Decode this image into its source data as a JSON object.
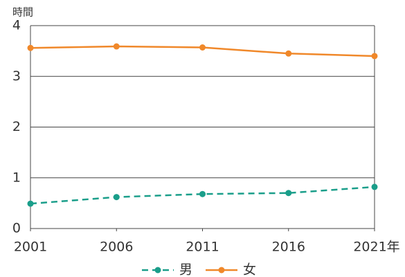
{
  "chart_data": {
    "type": "line",
    "y_unit_label": "時間",
    "x": [
      2001,
      2006,
      2011,
      2016,
      2021
    ],
    "xlim": [
      2001,
      2021
    ],
    "xticks": [
      2001,
      2006,
      2011,
      2016,
      {
        "value": 2021,
        "label": "2021年"
      }
    ],
    "ylim": [
      0,
      4
    ],
    "yticks": [
      0,
      1,
      2,
      3,
      4
    ],
    "grid": true,
    "legend": "bottom",
    "series": [
      {
        "name": "男",
        "color": "#1a9e8a",
        "linestyle": "dashed",
        "values": [
          0.49,
          0.62,
          0.68,
          0.7,
          0.82
        ]
      },
      {
        "name": "女",
        "color": "#f0882a",
        "linestyle": "solid",
        "values": [
          3.56,
          3.59,
          3.57,
          3.45,
          3.4
        ]
      }
    ]
  }
}
